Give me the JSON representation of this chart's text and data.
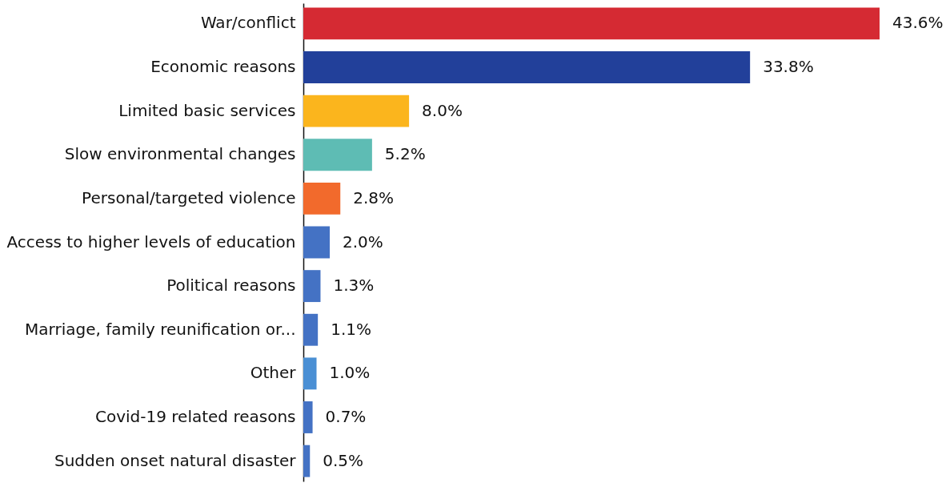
{
  "chart_data": {
    "type": "bar",
    "orientation": "horizontal",
    "categories": [
      "War/conflict",
      "Economic reasons",
      "Limited basic services",
      "Slow environmental changes",
      "Personal/targeted violence",
      "Access to higher levels of education",
      "Political reasons",
      "Marriage, family reunification or...",
      "Other",
      "Covid-19 related reasons",
      "Sudden onset natural disaster"
    ],
    "values": [
      43.6,
      33.8,
      8.0,
      5.2,
      2.8,
      2.0,
      1.3,
      1.1,
      1.0,
      0.7,
      0.5
    ],
    "colors": [
      "#d52a33",
      "#22409a",
      "#fbb51d",
      "#5ebcb4",
      "#f26a2c",
      "#4472c4",
      "#4472c4",
      "#4472c4",
      "#4a8fd4",
      "#4472c4",
      "#4472c4"
    ],
    "value_labels": [
      "43.6%",
      "33.8%",
      "8.0%",
      "5.2%",
      "2.8%",
      "2.0%",
      "1.3%",
      "1.1%",
      "1.0%",
      "0.7%",
      "0.5%"
    ]
  }
}
